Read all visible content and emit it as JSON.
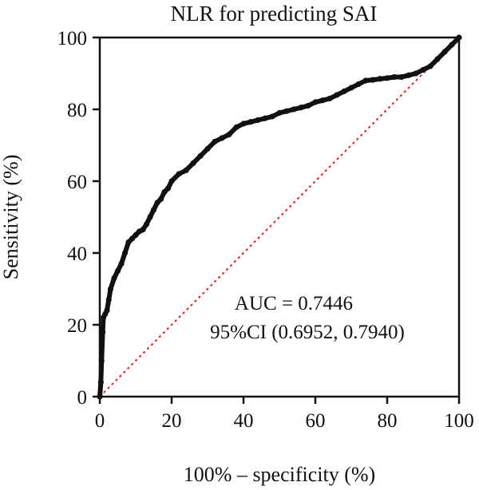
{
  "chart_data": {
    "type": "line",
    "title": "NLR for predicting SAI",
    "xlabel": "100% – specificity (%)",
    "ylabel": "Sensitivity (%)",
    "xlim": [
      0,
      100
    ],
    "ylim": [
      0,
      100
    ],
    "x_ticks": [
      0,
      20,
      40,
      60,
      80,
      100
    ],
    "y_ticks": [
      0,
      20,
      40,
      60,
      80,
      100
    ],
    "x_tick_labels": [
      "0",
      "20",
      "40",
      "60",
      "80",
      "100"
    ],
    "y_tick_labels": [
      "0",
      "20",
      "40",
      "60",
      "80",
      "100"
    ],
    "grid": false,
    "series": [
      {
        "style": "roc-curve",
        "color": "#111111",
        "x": [
          0,
          0.3,
          0.5,
          0.8,
          1,
          1.5,
          2,
          2.5,
          3,
          4,
          5,
          6,
          7,
          8,
          9,
          10,
          11,
          12,
          13,
          14,
          15,
          16,
          17,
          18,
          19,
          20,
          22,
          24,
          26,
          28,
          30,
          32,
          34,
          36,
          38,
          40,
          42,
          44,
          46,
          48,
          50,
          52,
          54,
          56,
          58,
          60,
          62,
          64,
          66,
          68,
          70,
          72,
          74,
          76,
          78,
          80,
          82,
          84,
          86,
          88,
          90,
          92,
          94,
          96,
          98,
          100
        ],
        "y": [
          0,
          4,
          10,
          18,
          22,
          23,
          24,
          27,
          30,
          33,
          35,
          37,
          40,
          43,
          44,
          45,
          46,
          46.5,
          48,
          50,
          52,
          54,
          55,
          57,
          58,
          60,
          62,
          63,
          65,
          67,
          69,
          71,
          72,
          73,
          75,
          76,
          76.5,
          77,
          77.5,
          78,
          79,
          79.5,
          80,
          80.5,
          81,
          82,
          82.5,
          83,
          84,
          85,
          86,
          87,
          88,
          88.2,
          88.5,
          88.7,
          89,
          89,
          89.5,
          90,
          91,
          92,
          94,
          96,
          98,
          100
        ]
      },
      {
        "style": "reference-line",
        "color": "#e0201b",
        "x": [
          0,
          100
        ],
        "y": [
          0,
          100
        ]
      }
    ],
    "annotations": [
      "AUC = 0.7446",
      "95%CI (0.6952, 0.7940)"
    ]
  }
}
